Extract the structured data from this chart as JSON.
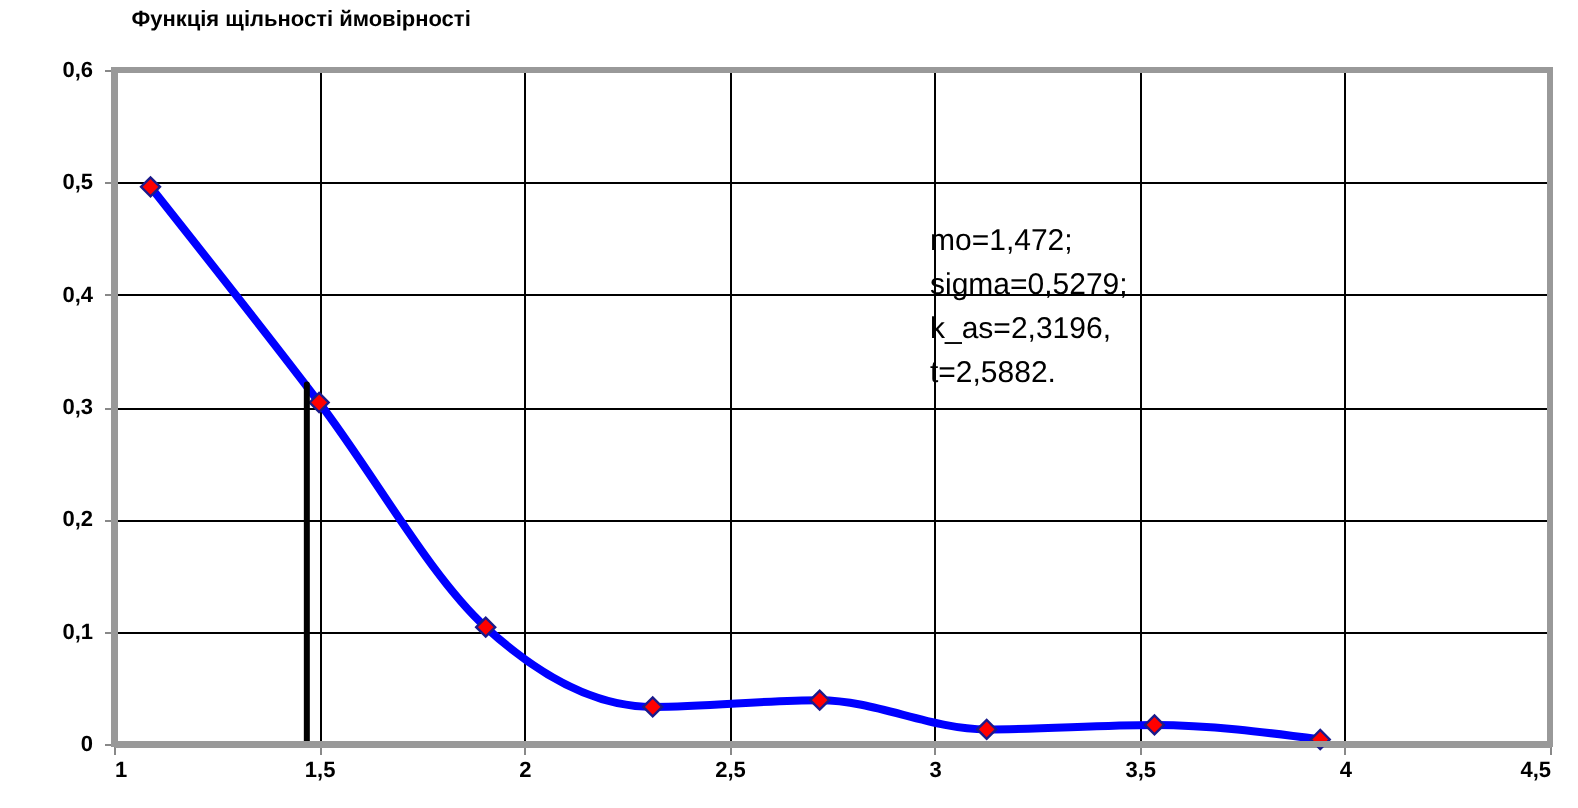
{
  "chart_data": {
    "type": "line",
    "title": "Функція щільності ймовірності",
    "annotations": [
      "mo=1,472;\nsigma=0,5279;\nk_as=2,3196,\nt=2,5882."
    ],
    "series": [
      {
        "color": "#0000ff",
        "x": [
          1.089,
          1.5,
          1.906,
          2.313,
          2.72,
          3.127,
          3.536,
          3.94
        ],
        "values": [
          0.496,
          0.304,
          0.104,
          0.033,
          0.039,
          0.013,
          0.017,
          0.004
        ],
        "marker": "diamond"
      },
      {
        "color": "#000000",
        "x": [
          1.47,
          1.47
        ],
        "values": [
          0,
          0.32
        ],
        "marker": "none"
      }
    ],
    "xlim": [
      1,
      4.5
    ],
    "xticks": [
      1,
      {
        "value": 1.5,
        "label": "1,5"
      },
      2,
      {
        "value": 2.5,
        "label": "2,5"
      },
      3,
      {
        "value": 3.5,
        "label": "3,5"
      },
      4,
      {
        "value": 4.5,
        "label": "4,5"
      }
    ],
    "ylim": [
      0,
      0.6
    ],
    "yticks": [
      0,
      {
        "value": 0.1,
        "label": "0,1"
      },
      {
        "value": 0.2,
        "label": "0,2"
      },
      {
        "value": 0.3,
        "label": "0,3"
      },
      {
        "value": 0.4,
        "label": "0,4"
      },
      {
        "value": 0.5,
        "label": "0,5"
      },
      {
        "value": 0.6,
        "label": "0,6"
      }
    ],
    "grid": true
  }
}
